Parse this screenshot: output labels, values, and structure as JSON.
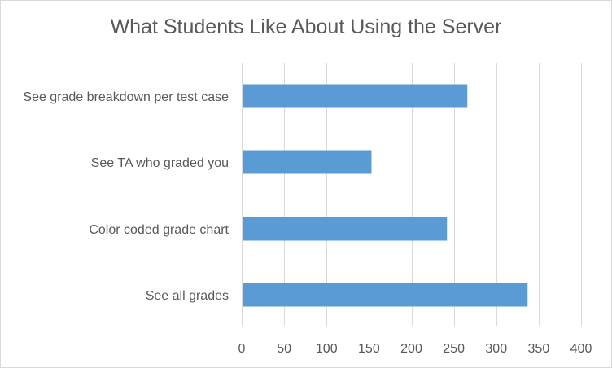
{
  "chart_data": {
    "type": "bar",
    "orientation": "horizontal",
    "title": "What Students Like About Using the Server",
    "categories": [
      "See grade breakdown per test case",
      "See TA who graded you",
      "Color coded grade chart",
      "See all grades"
    ],
    "values": [
      265,
      152,
      241,
      336
    ],
    "xlim": [
      0,
      400
    ],
    "x_ticks": [
      0,
      50,
      100,
      150,
      200,
      250,
      300,
      350,
      400
    ],
    "grid": "vertical",
    "bar_color": "#5b9bd5"
  }
}
